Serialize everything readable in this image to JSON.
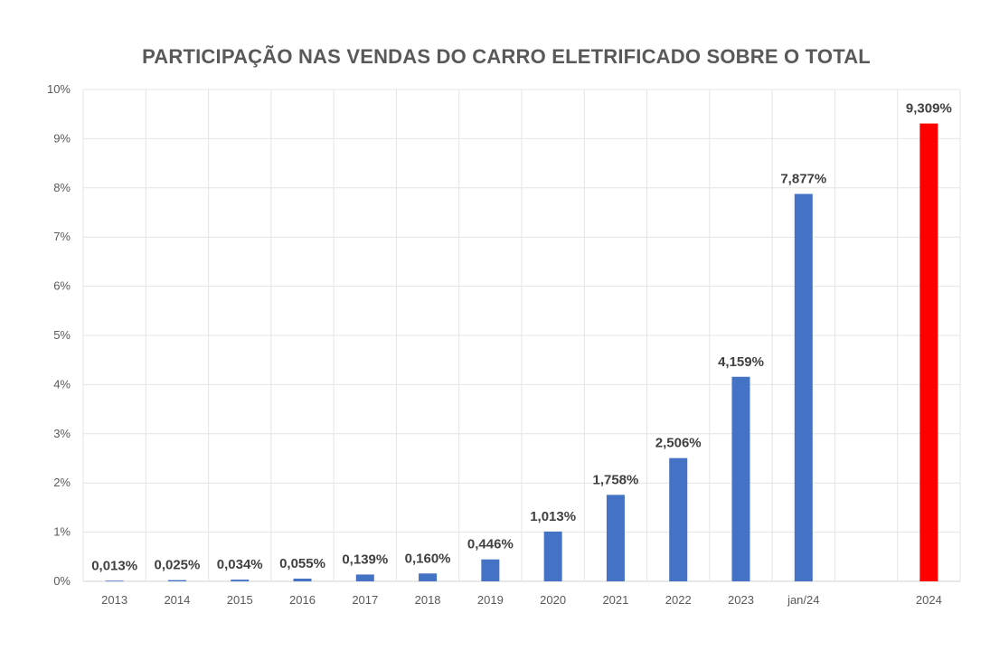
{
  "chart_data": {
    "type": "bar",
    "title": "PARTICIPAÇÃO NAS VENDAS DO CARRO ELETRIFICADO SOBRE O TOTAL",
    "xlabel": "",
    "ylabel": "",
    "categories": [
      "2013",
      "2014",
      "2015",
      "2016",
      "2017",
      "2018",
      "2019",
      "2020",
      "2021",
      "2022",
      "2023",
      "jan/24",
      "",
      "2024"
    ],
    "values": [
      0.013,
      0.025,
      0.034,
      0.055,
      0.139,
      0.16,
      0.446,
      1.013,
      1.758,
      2.506,
      4.159,
      7.877,
      null,
      9.309
    ],
    "data_labels": [
      "0,013%",
      "0,025%",
      "0,034%",
      "0,055%",
      "0,139%",
      "0,160%",
      "0,446%",
      "1,013%",
      "1,758%",
      "2,506%",
      "4,159%",
      "7,877%",
      "",
      "9,309%"
    ],
    "bar_colors": [
      "#4472C4",
      "#4472C4",
      "#4472C4",
      "#4472C4",
      "#4472C4",
      "#4472C4",
      "#4472C4",
      "#4472C4",
      "#4472C4",
      "#4472C4",
      "#4472C4",
      "#4472C4",
      "#4472C4",
      "#FF0000"
    ],
    "ylim": [
      0,
      10
    ],
    "yticks": [
      0,
      1,
      2,
      3,
      4,
      5,
      6,
      7,
      8,
      9,
      10
    ],
    "ytick_labels": [
      "0%",
      "1%",
      "2%",
      "3%",
      "4%",
      "5%",
      "6%",
      "7%",
      "8%",
      "9%",
      "10%"
    ],
    "grid": true,
    "legend": "none"
  }
}
